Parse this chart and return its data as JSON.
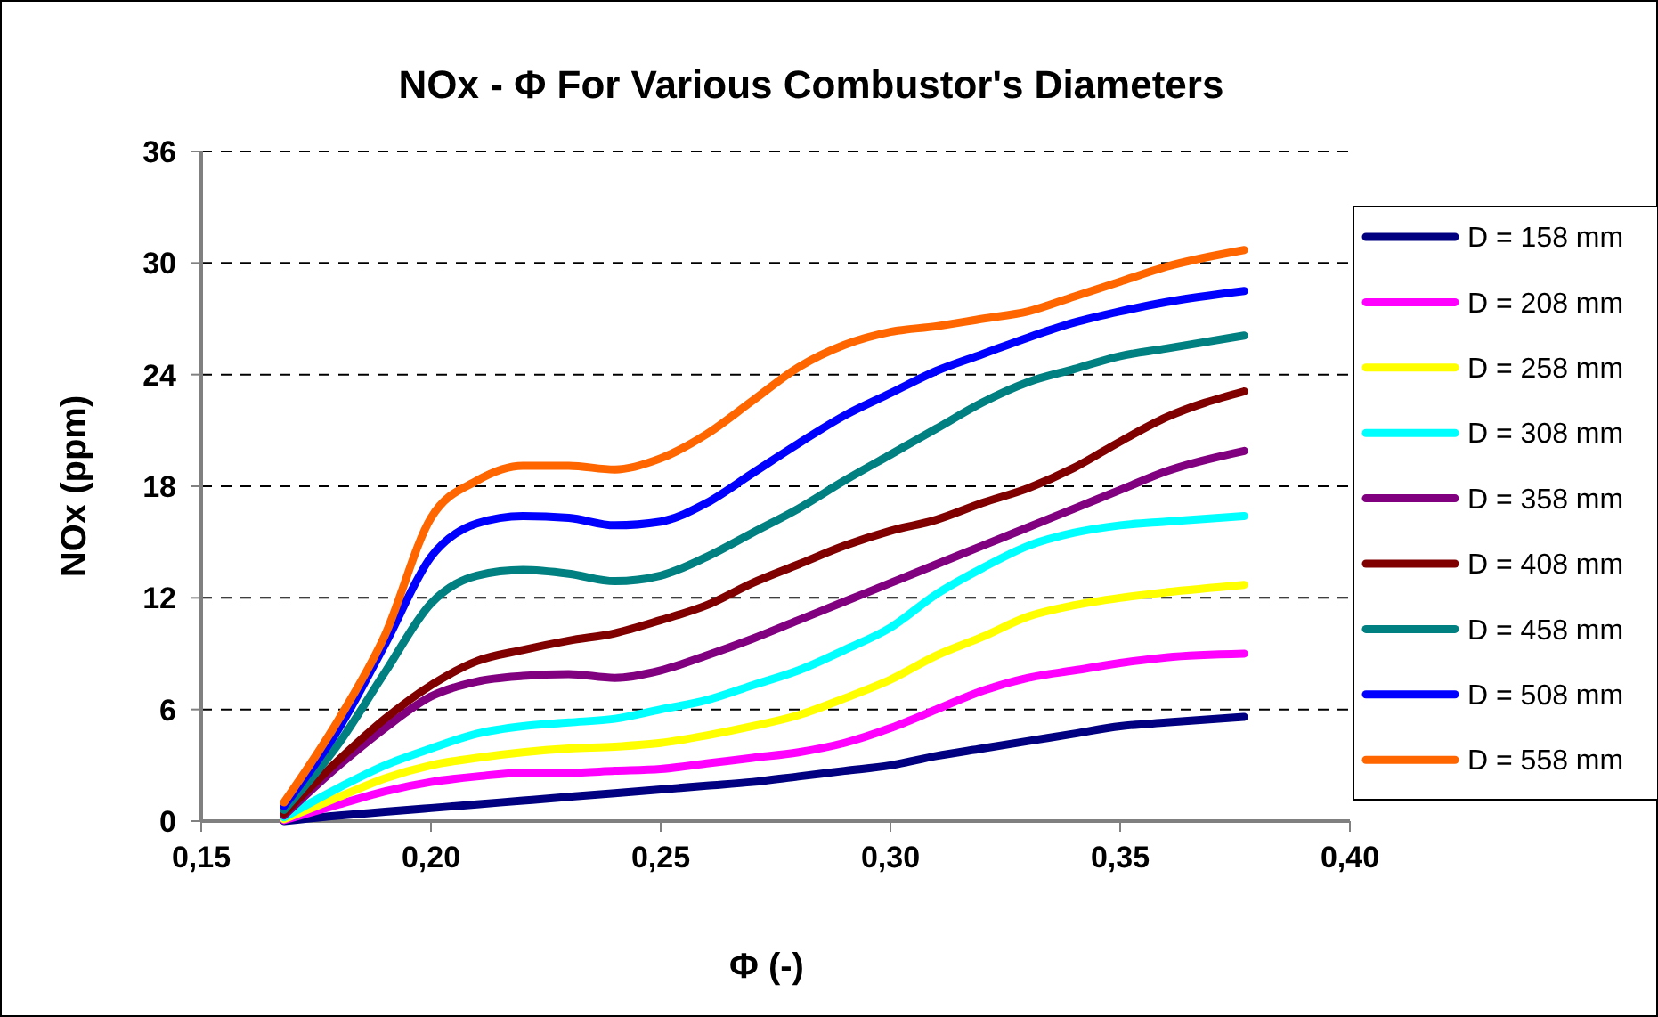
{
  "chart_data": {
    "type": "line",
    "title": "NOx - Φ For Various Combustor's Diameters",
    "xlabel": "Φ (-)",
    "ylabel": "NOx (ppm)",
    "x": [
      0.168,
      0.18,
      0.19,
      0.2,
      0.21,
      0.22,
      0.23,
      0.24,
      0.25,
      0.26,
      0.27,
      0.28,
      0.29,
      0.3,
      0.31,
      0.32,
      0.33,
      0.34,
      0.35,
      0.36,
      0.377
    ],
    "xlim": [
      0.15,
      0.4
    ],
    "xticks": [
      {
        "value": 0.15,
        "label": "0,15"
      },
      {
        "value": 0.2,
        "label": "0,20"
      },
      {
        "value": 0.25,
        "label": "0,25"
      },
      {
        "value": 0.3,
        "label": "0,30"
      },
      {
        "value": 0.35,
        "label": "0,35"
      },
      {
        "value": 0.4,
        "label": "0,40"
      }
    ],
    "ylim": [
      0,
      36
    ],
    "yticks": [
      0,
      6,
      12,
      18,
      24,
      30,
      36
    ],
    "grid": "y",
    "legend": "right",
    "marker": "none",
    "line_style": "solid",
    "series": [
      {
        "name": "D = 158 mm",
        "color": "#000080",
        "values": [
          0,
          0.3,
          0.5,
          0.7,
          0.9,
          1.1,
          1.3,
          1.5,
          1.7,
          1.9,
          2.1,
          2.4,
          2.7,
          3,
          3.5,
          3.9,
          4.3,
          4.7,
          5.1,
          5.3,
          5.6
        ]
      },
      {
        "name": "D = 208 mm",
        "color": "#ff00ff",
        "values": [
          0.05,
          0.9,
          1.6,
          2.1,
          2.4,
          2.6,
          2.6,
          2.7,
          2.8,
          3.1,
          3.4,
          3.7,
          4.2,
          5,
          6,
          7,
          7.7,
          8.1,
          8.5,
          8.8,
          9
        ]
      },
      {
        "name": "D = 258 mm",
        "color": "#ffff00",
        "values": [
          0.1,
          1.3,
          2.3,
          3,
          3.4,
          3.7,
          3.9,
          4,
          4.2,
          4.6,
          5.1,
          5.7,
          6.6,
          7.6,
          8.9,
          9.9,
          11,
          11.6,
          12,
          12.3,
          12.7
        ]
      },
      {
        "name": "D = 308 mm",
        "color": "#00ffff",
        "values": [
          0.2,
          1.8,
          3,
          3.9,
          4.7,
          5.1,
          5.3,
          5.5,
          6,
          6.5,
          7.3,
          8.1,
          9.2,
          10.4,
          12.2,
          13.6,
          14.8,
          15.5,
          15.9,
          16.1,
          16.4
        ]
      },
      {
        "name": "D = 358 mm",
        "color": "#800080",
        "values": [
          0.3,
          3,
          5,
          6.7,
          7.5,
          7.8,
          7.9,
          7.7,
          8.1,
          8.9,
          9.8,
          10.8,
          11.8,
          12.8,
          13.8,
          14.8,
          15.8,
          16.8,
          17.8,
          18.8,
          19.9
        ]
      },
      {
        "name": "D = 408 mm",
        "color": "#800000",
        "values": [
          0.4,
          3.3,
          5.5,
          7.3,
          8.6,
          9.2,
          9.7,
          10.1,
          10.8,
          11.6,
          12.8,
          13.8,
          14.8,
          15.6,
          16.2,
          17.1,
          17.9,
          19,
          20.4,
          21.7,
          23.1
        ]
      },
      {
        "name": "D = 458 mm",
        "color": "#008080",
        "values": [
          0.6,
          4.2,
          8,
          11.7,
          13.2,
          13.5,
          13.3,
          12.9,
          13.2,
          14.2,
          15.5,
          16.8,
          18.3,
          19.7,
          21.1,
          22.5,
          23.6,
          24.3,
          25,
          25.4,
          26.1
        ]
      },
      {
        "name": "D = 508 mm",
        "color": "#0000ff",
        "values": [
          0.8,
          5,
          9.5,
          14.2,
          16,
          16.4,
          16.3,
          15.9,
          16.1,
          17.1,
          18.7,
          20.3,
          21.8,
          23,
          24.2,
          25.1,
          26,
          26.8,
          27.4,
          27.9,
          28.5
        ]
      },
      {
        "name": "D = 558 mm",
        "color": "#ff6600",
        "values": [
          1,
          5.5,
          10,
          16.3,
          18.3,
          19.1,
          19.1,
          18.9,
          19.5,
          20.8,
          22.6,
          24.4,
          25.6,
          26.3,
          26.6,
          27,
          27.4,
          28.2,
          29,
          29.8,
          30.7
        ]
      }
    ]
  }
}
